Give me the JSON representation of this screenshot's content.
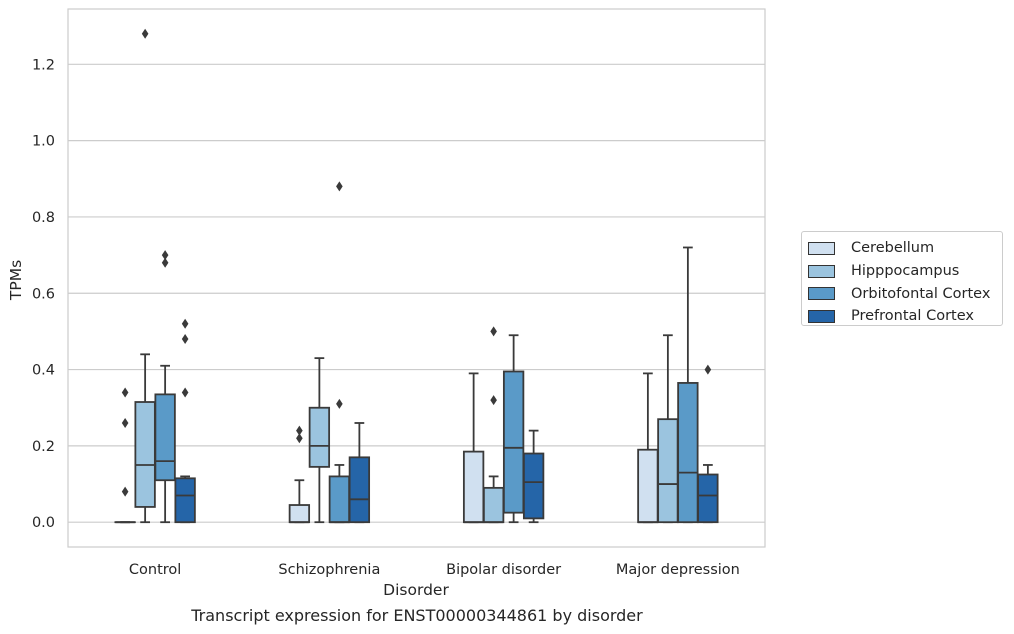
{
  "chart_data": {
    "type": "box",
    "title": "",
    "xlabel": "Disorder",
    "ylabel": "TPMs",
    "caption": "Transcript expression for ENST00000344861 by disorder",
    "ylim": [
      -0.065,
      1.345
    ],
    "yticks": [
      "0.0",
      "0.2",
      "0.4",
      "0.6",
      "0.8",
      "1.0",
      "1.2"
    ],
    "grid": true,
    "legend_position": "right",
    "categories": [
      "Control",
      "Schizophrenia",
      "Bipolar disorder",
      "Major depression"
    ],
    "series": [
      {
        "name": "Cerebellum",
        "color": "#d0e0f0",
        "boxes": [
          {
            "min": 0.0,
            "q1": 0.0,
            "median": 0.0,
            "q3": 0.0,
            "max": 0.0,
            "outliers": [
              0.08,
              0.26,
              0.34
            ]
          },
          {
            "min": 0.0,
            "q1": 0.0,
            "median": 0.0,
            "q3": 0.045,
            "max": 0.11,
            "outliers": [
              0.22,
              0.24
            ]
          },
          {
            "min": 0.0,
            "q1": 0.0,
            "median": 0.0,
            "q3": 0.185,
            "max": 0.39,
            "outliers": []
          },
          {
            "min": 0.0,
            "q1": 0.0,
            "median": 0.0,
            "q3": 0.19,
            "max": 0.39,
            "outliers": []
          }
        ]
      },
      {
        "name": "Hipppocampus",
        "color": "#9bc4df",
        "boxes": [
          {
            "min": 0.0,
            "q1": 0.04,
            "median": 0.15,
            "q3": 0.315,
            "max": 0.44,
            "outliers": [
              1.28
            ]
          },
          {
            "min": 0.0,
            "q1": 0.145,
            "median": 0.2,
            "q3": 0.3,
            "max": 0.43,
            "outliers": []
          },
          {
            "min": 0.0,
            "q1": 0.0,
            "median": 0.0,
            "q3": 0.09,
            "max": 0.12,
            "outliers": [
              0.32,
              0.5
            ]
          },
          {
            "min": 0.0,
            "q1": 0.0,
            "median": 0.1,
            "q3": 0.27,
            "max": 0.49,
            "outliers": []
          }
        ]
      },
      {
        "name": "Orbitofontal Cortex",
        "color": "#5a9ac8",
        "boxes": [
          {
            "min": 0.0,
            "q1": 0.11,
            "median": 0.16,
            "q3": 0.335,
            "max": 0.41,
            "outliers": [
              0.68,
              0.7
            ]
          },
          {
            "min": 0.0,
            "q1": 0.0,
            "median": 0.0,
            "q3": 0.12,
            "max": 0.15,
            "outliers": [
              0.31,
              0.88
            ]
          },
          {
            "min": 0.0,
            "q1": 0.025,
            "median": 0.195,
            "q3": 0.395,
            "max": 0.49,
            "outliers": []
          },
          {
            "min": 0.0,
            "q1": 0.0,
            "median": 0.13,
            "q3": 0.365,
            "max": 0.72,
            "outliers": []
          }
        ]
      },
      {
        "name": "Prefrontal Cortex",
        "color": "#2565a8",
        "boxes": [
          {
            "min": 0.0,
            "q1": 0.0,
            "median": 0.07,
            "q3": 0.115,
            "max": 0.12,
            "outliers": [
              0.34,
              0.48,
              0.52
            ]
          },
          {
            "min": 0.0,
            "q1": 0.0,
            "median": 0.06,
            "q3": 0.17,
            "max": 0.26,
            "outliers": []
          },
          {
            "min": 0.0,
            "q1": 0.01,
            "median": 0.105,
            "q3": 0.18,
            "max": 0.24,
            "outliers": []
          },
          {
            "min": 0.0,
            "q1": 0.0,
            "median": 0.07,
            "q3": 0.125,
            "max": 0.15,
            "outliers": [
              0.4
            ]
          }
        ]
      }
    ]
  }
}
